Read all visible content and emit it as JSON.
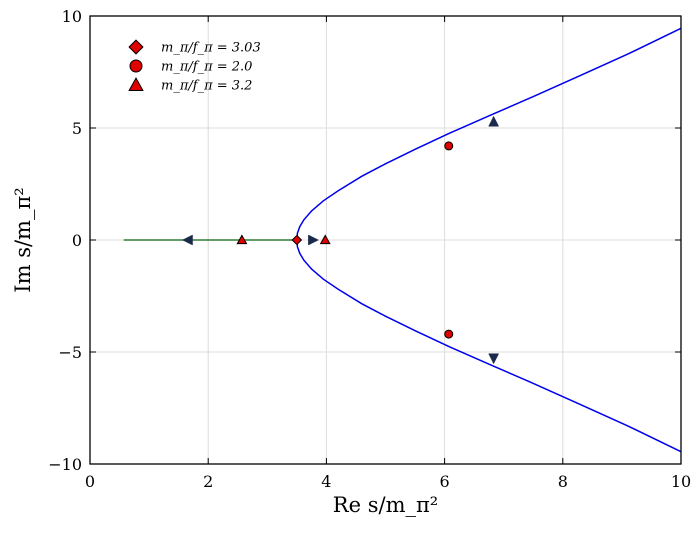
{
  "chart_data": {
    "type": "line",
    "title": "",
    "xlabel": "Re s/m_π²",
    "ylabel": "Im s/m_π²",
    "xlim": [
      0,
      10
    ],
    "ylim": [
      -10,
      10
    ],
    "xticks": [
      0,
      2,
      4,
      6,
      8,
      10
    ],
    "yticks": [
      -10,
      -5,
      0,
      5,
      10
    ],
    "xtick_labels": [
      "0",
      "2",
      "4",
      "6",
      "8",
      "10"
    ],
    "ytick_labels": [
      "−10",
      "−5",
      "0",
      "5",
      "10"
    ],
    "grid": true,
    "legend_position": "top-left",
    "colors": {
      "upper_branch": "#0000ee",
      "real_branch": "#2e7d32",
      "marker_fill": "#e00000",
      "arrow_fill": "#1a2a4a"
    },
    "series": [
      {
        "branch": "complex-upper",
        "x": [
          3.5,
          3.51,
          3.55,
          3.62,
          3.75,
          3.95,
          4.2,
          4.6,
          5.0,
          5.5,
          6.07,
          6.8,
          7.5,
          8.3,
          9.1,
          10.0
        ],
        "y": [
          0.0,
          0.3,
          0.6,
          0.9,
          1.3,
          1.75,
          2.2,
          2.85,
          3.4,
          4.05,
          4.75,
          5.6,
          6.4,
          7.35,
          8.3,
          9.45
        ]
      },
      {
        "branch": "complex-lower",
        "x": [
          3.5,
          3.51,
          3.55,
          3.62,
          3.75,
          3.95,
          4.2,
          4.6,
          5.0,
          5.5,
          6.07,
          6.8,
          7.5,
          8.3,
          9.1,
          10.0
        ],
        "y": [
          0.0,
          -0.3,
          -0.6,
          -0.9,
          -1.3,
          -1.75,
          -2.2,
          -2.85,
          -3.4,
          -4.05,
          -4.75,
          -5.6,
          -6.4,
          -7.35,
          -8.3,
          -9.45
        ]
      },
      {
        "branch": "real-axis",
        "x": [
          0.57,
          3.5
        ],
        "y": [
          0,
          0
        ]
      }
    ],
    "legend": [
      {
        "marker": "diamond",
        "label": "m_π/f_π = 3.03"
      },
      {
        "marker": "circle",
        "label": "m_π/f_π = 2.0"
      },
      {
        "marker": "triangle",
        "label": "m_π/f_π = 3.2"
      }
    ],
    "markers": [
      {
        "shape": "diamond",
        "x": 3.5,
        "y": 0
      },
      {
        "shape": "circle",
        "x": 6.07,
        "y": 4.2
      },
      {
        "shape": "circle",
        "x": 6.07,
        "y": -4.2
      },
      {
        "shape": "triangle",
        "x": 2.57,
        "y": 0
      },
      {
        "shape": "triangle",
        "x": 3.98,
        "y": 0
      }
    ],
    "arrows": [
      {
        "x": 1.65,
        "y": 0,
        "direction": "left"
      },
      {
        "x": 3.78,
        "y": 0,
        "direction": "right"
      },
      {
        "x": 6.83,
        "y": 5.3,
        "direction": "up"
      },
      {
        "x": 6.83,
        "y": -5.3,
        "direction": "down"
      }
    ]
  }
}
